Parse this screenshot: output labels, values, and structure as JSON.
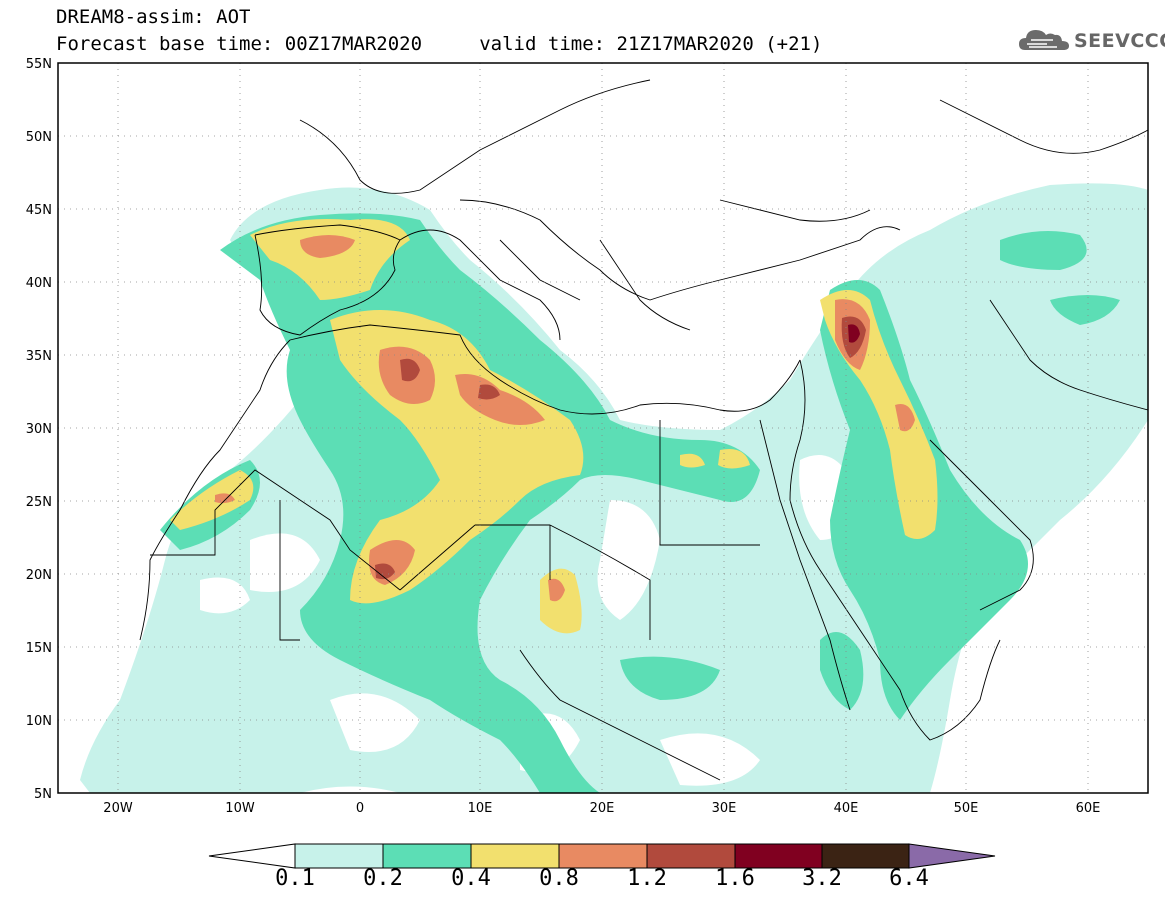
{
  "header": {
    "line1": "DREAM8-assim: AOT",
    "line2": "Forecast base time: 00Z17MAR2020     valid time: 21Z17MAR2020 (+21)",
    "logo_text": "SEEVCCC"
  },
  "map": {
    "lon_range": [
      -25,
      65
    ],
    "lat_range": [
      5,
      55
    ],
    "lat_ticks": [
      "55N",
      "50N",
      "45N",
      "40N",
      "35N",
      "30N",
      "25N",
      "20N",
      "15N",
      "10N",
      "5N"
    ],
    "lon_ticks": [
      "20W",
      "10W",
      "0",
      "10E",
      "20E",
      "30E",
      "40E",
      "50E",
      "60E"
    ]
  },
  "colorbar": {
    "labels": [
      "0.1",
      "0.2",
      "0.4",
      "0.8",
      "1.2",
      "1.6",
      "3.2",
      "6.4"
    ],
    "colors": [
      "#c7f2ea",
      "#5cdeb5",
      "#f2e06e",
      "#e88a62",
      "#b14a3d",
      "#800020",
      "#3b2314",
      "#8a6aa8"
    ]
  }
}
